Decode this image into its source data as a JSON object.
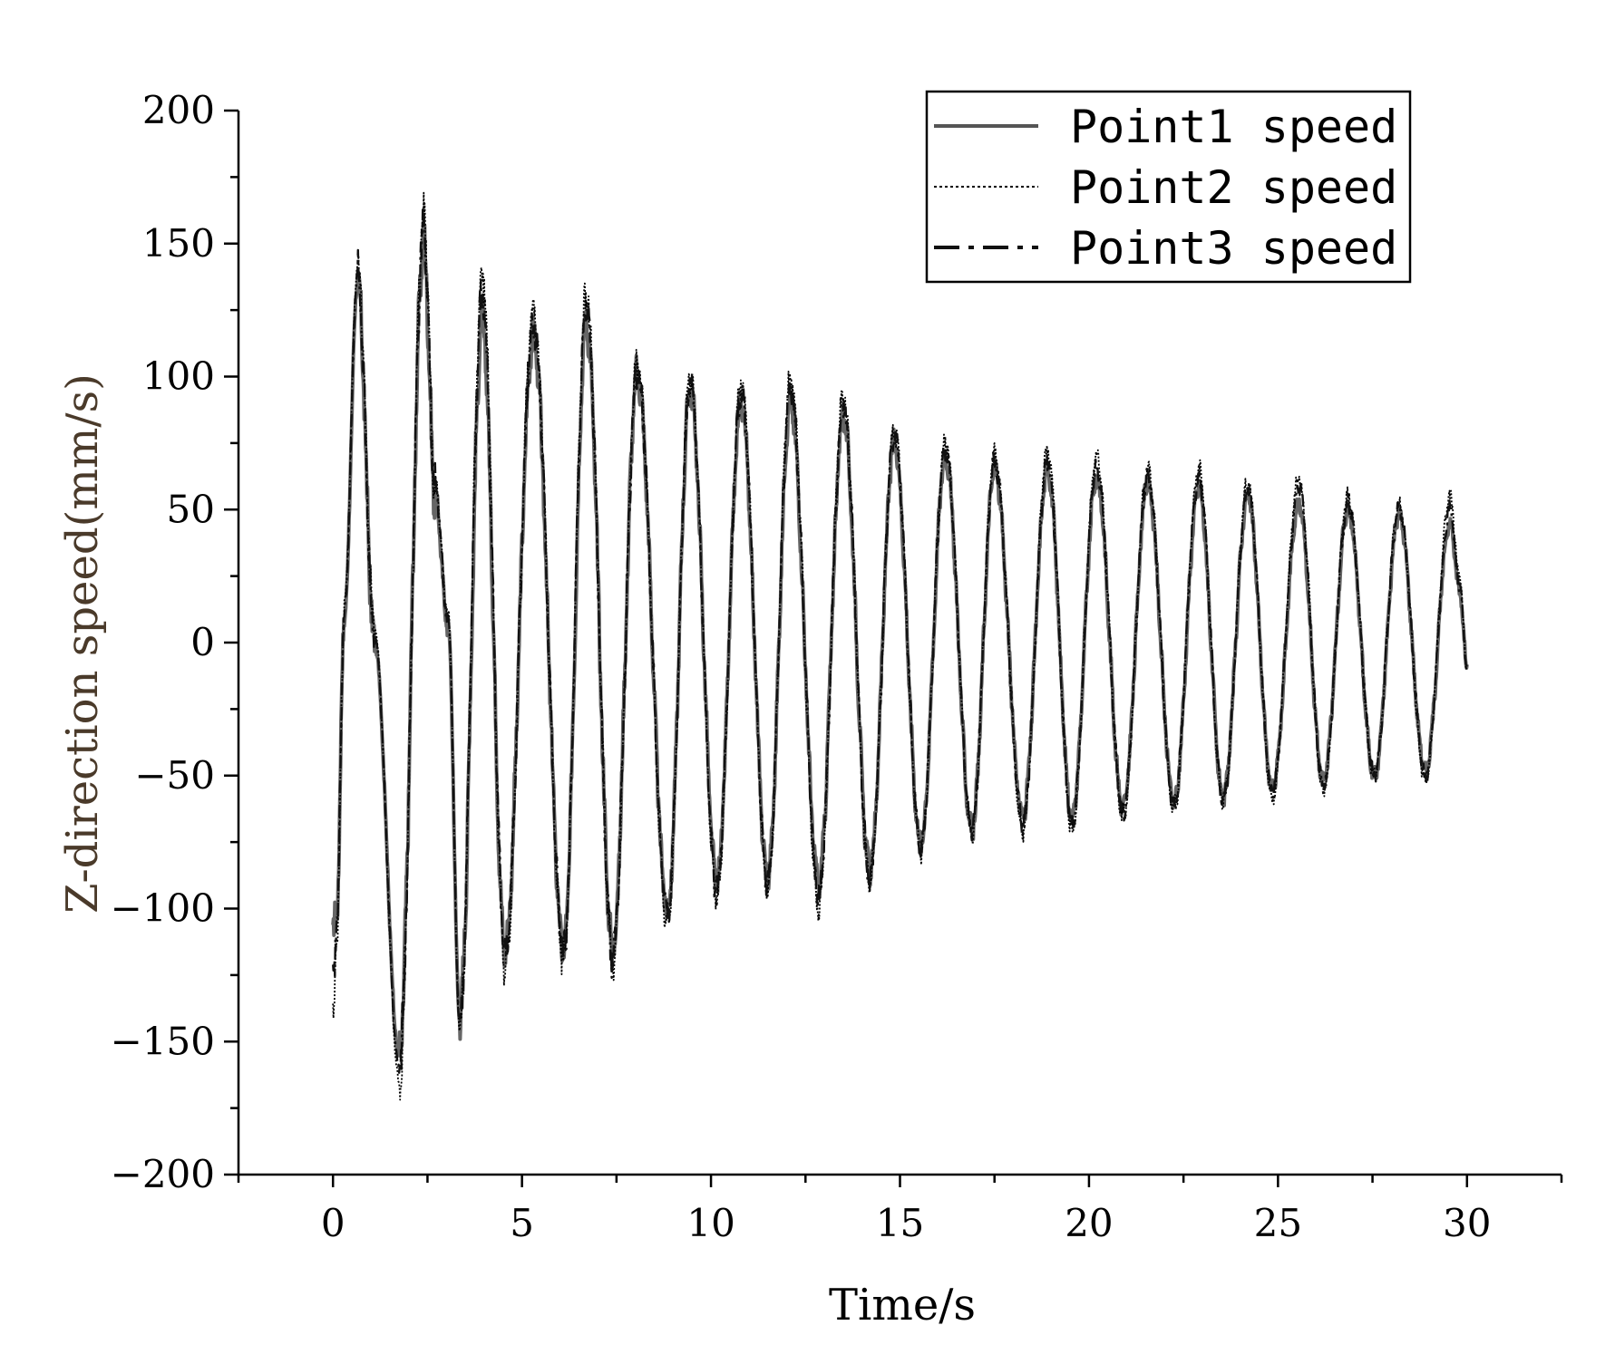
{
  "chart_data": {
    "type": "line",
    "title": "",
    "xlabel": "Time/s",
    "ylabel": "Z-direction speed(mm/s)",
    "xlim": [
      -2.5,
      32.5
    ],
    "ylim": [
      -200,
      200
    ],
    "xticks": [
      0,
      5,
      10,
      15,
      20,
      25,
      30
    ],
    "xtick_labels": [
      "0",
      "5",
      "10",
      "15",
      "20",
      "25",
      "30"
    ],
    "yticks": [
      200,
      150,
      100,
      50,
      0,
      -50,
      -100,
      -150,
      -200
    ],
    "ytick_labels": [
      "200",
      "150",
      "100",
      "50",
      "0",
      "−50",
      "−100",
      "−150",
      "−200"
    ],
    "legend": {
      "position": "top-right",
      "entries": [
        "Point1 speed",
        "Point2 speed",
        "Point3 speed"
      ]
    },
    "colors": {
      "Point1 speed": "#555555",
      "Point2 speed": "#000000",
      "Point3 speed": "#111111"
    },
    "series": [
      {
        "name": "Point1 speed",
        "line_style": "solid",
        "x": [
          0,
          0.1,
          0.3,
          0.65,
          1.1,
          1.75,
          2.4,
          2.7,
          3.05,
          3.35,
          3.95,
          4.55,
          5.3,
          6.1,
          6.7,
          7.4,
          8.05,
          8.85,
          9.45,
          10.15,
          10.8,
          11.5,
          12.1,
          12.85,
          13.5,
          14.2,
          14.85,
          15.55,
          16.2,
          16.9,
          17.5,
          18.25,
          18.9,
          19.55,
          20.2,
          20.9,
          21.55,
          22.25,
          22.9,
          23.55,
          24.2,
          24.85,
          25.55,
          26.2,
          26.85,
          27.55,
          28.2,
          28.9,
          29.55,
          29.8,
          30.0
        ],
        "y": [
          -110,
          -100,
          10,
          135,
          0,
          -155,
          150,
          55,
          5,
          -140,
          120,
          -115,
          115,
          -115,
          120,
          -115,
          100,
          -100,
          95,
          -90,
          90,
          -88,
          90,
          -90,
          85,
          -85,
          75,
          -75,
          70,
          -70,
          65,
          -65,
          65,
          -65,
          62,
          -62,
          60,
          -60,
          58,
          -58,
          55,
          -55,
          52,
          -52,
          50,
          -50,
          48,
          -48,
          45,
          20,
          -8
        ]
      },
      {
        "name": "Point2 speed",
        "line_style": "dotted",
        "x": [
          0,
          0.1,
          0.3,
          0.65,
          1.1,
          1.75,
          2.4,
          2.7,
          3.05,
          3.35,
          3.95,
          4.55,
          5.3,
          6.1,
          6.7,
          7.4,
          8.05,
          8.85,
          9.45,
          10.15,
          10.8,
          11.5,
          12.1,
          12.85,
          13.5,
          14.2,
          14.85,
          15.55,
          16.2,
          16.9,
          17.5,
          18.25,
          18.9,
          19.55,
          20.2,
          20.9,
          21.55,
          22.25,
          22.9,
          23.55,
          24.2,
          24.85,
          25.55,
          26.2,
          26.85,
          27.55,
          28.2,
          28.9,
          29.55,
          29.8,
          30.0
        ],
        "y": [
          -145,
          -110,
          15,
          142,
          5,
          -165,
          160,
          60,
          10,
          -145,
          140,
          -122,
          125,
          -118,
          130,
          -120,
          105,
          -105,
          100,
          -95,
          98,
          -92,
          100,
          -98,
          92,
          -90,
          80,
          -78,
          75,
          -72,
          70,
          -70,
          72,
          -70,
          70,
          -65,
          65,
          -62,
          65,
          -60,
          60,
          -58,
          62,
          -56,
          55,
          -50,
          52,
          -52,
          55,
          25,
          -10
        ]
      },
      {
        "name": "Point3 speed",
        "line_style": "dash-dot",
        "x": [
          0,
          0.1,
          0.3,
          0.65,
          1.1,
          1.75,
          2.4,
          2.7,
          3.05,
          3.35,
          3.95,
          4.55,
          5.3,
          6.1,
          6.7,
          7.4,
          8.05,
          8.85,
          9.45,
          10.15,
          10.8,
          11.5,
          12.1,
          12.85,
          13.5,
          14.2,
          14.85,
          15.55,
          16.2,
          16.9,
          17.5,
          18.25,
          18.9,
          19.55,
          20.2,
          20.9,
          21.55,
          22.25,
          22.9,
          23.55,
          24.2,
          24.85,
          25.55,
          26.2,
          26.85,
          27.55,
          28.2,
          28.9,
          29.55,
          29.8,
          30.0
        ],
        "y": [
          -130,
          -105,
          12,
          138,
          2,
          -160,
          155,
          58,
          8,
          -142,
          130,
          -118,
          120,
          -116,
          125,
          -118,
          102,
          -102,
          97,
          -92,
          94,
          -90,
          95,
          -95,
          88,
          -88,
          78,
          -76,
          72,
          -70,
          68,
          -68,
          68,
          -68,
          66,
          -64,
          62,
          -61,
          62,
          -59,
          58,
          -56,
          58,
          -54,
          52,
          -50,
          50,
          -50,
          50,
          22,
          -9
        ]
      }
    ]
  }
}
